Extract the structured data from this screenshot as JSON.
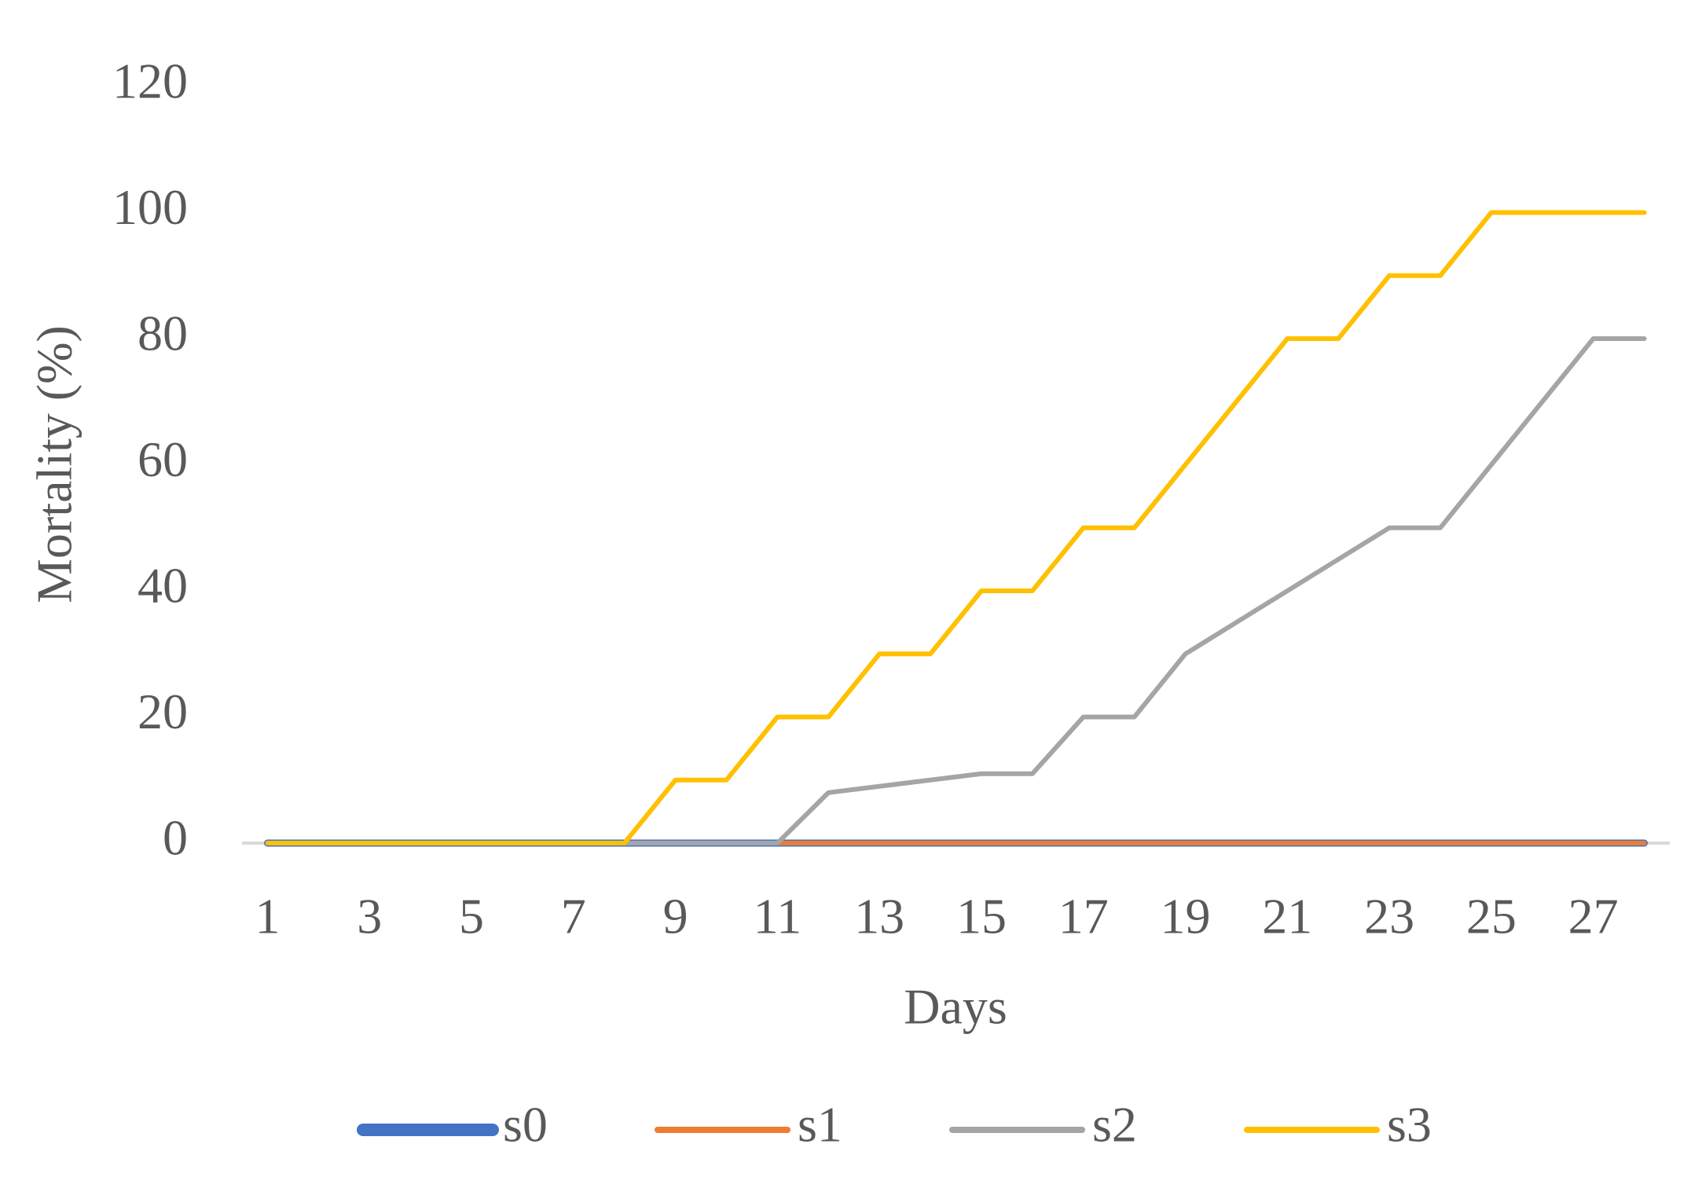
{
  "chart_data": {
    "type": "line",
    "y_label": "Mortality (%)",
    "x_label": "Days",
    "categories": [
      "1",
      null,
      "3",
      null,
      "5",
      null,
      "7",
      null,
      "9",
      null,
      "11",
      null,
      "13",
      null,
      "15",
      null,
      "17",
      null,
      "19",
      null,
      "21",
      null,
      "23",
      null,
      "25",
      null,
      "27",
      null
    ],
    "series": [
      {
        "name": "s0",
        "color": "#4472c4",
        "values": [
          0,
          0,
          0,
          0,
          0,
          0,
          0,
          0,
          0,
          0,
          0,
          0,
          0,
          0,
          0,
          0,
          0,
          0,
          0,
          0,
          0,
          0,
          0,
          0,
          0,
          0,
          0,
          0
        ]
      },
      {
        "name": "s1",
        "color": "#ed7d31",
        "values": [
          0,
          0,
          0,
          0,
          0,
          0,
          0,
          0,
          0,
          0,
          0,
          0,
          0,
          0,
          0,
          0,
          0,
          0,
          0,
          0,
          0,
          0,
          0,
          0,
          0,
          0,
          0,
          0
        ]
      },
      {
        "name": "s2",
        "color": "#a5a5a5",
        "values": [
          0,
          0,
          0,
          0,
          0,
          0,
          0,
          0,
          0,
          0,
          0,
          8,
          9,
          10,
          11,
          11,
          20,
          20,
          30,
          35,
          40,
          45,
          50,
          50,
          60,
          70,
          80,
          80
        ]
      },
      {
        "name": "s3",
        "color": "#ffc000",
        "values": [
          0,
          0,
          0,
          0,
          0,
          0,
          0,
          0,
          10,
          10,
          20,
          20,
          30,
          30,
          40,
          40,
          50,
          50,
          60,
          70,
          80,
          80,
          90,
          90,
          100,
          100,
          100,
          100
        ]
      }
    ],
    "ylim": [
      0,
      120
    ],
    "yticks": [
      0,
      20,
      40,
      60,
      80,
      100,
      120
    ],
    "grid": false,
    "legend": "bottom"
  }
}
